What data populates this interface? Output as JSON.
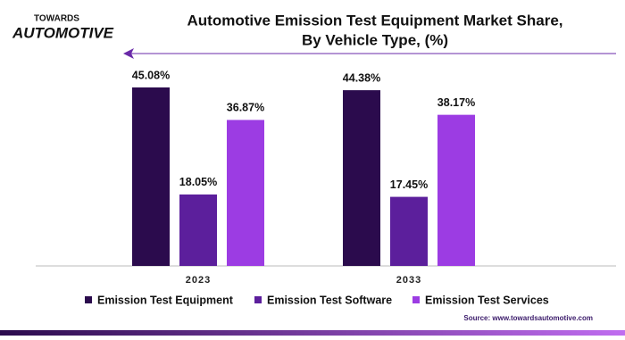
{
  "logo": {
    "top": "TOWARDS",
    "bottom": "AUTOMOTIVE"
  },
  "chart_data": {
    "type": "bar",
    "title": "Automotive Emission Test Equipment Market Share,",
    "subtitle": "By Vehicle Type, (%)",
    "categories": [
      "2023",
      "2033"
    ],
    "series": [
      {
        "name": "Emission Test Equipment",
        "color": "#2b0b4d",
        "values": [
          45.08,
          44.38
        ],
        "value_labels": [
          "45.08%",
          "44.38%"
        ]
      },
      {
        "name": "Emission Test Software",
        "color": "#5c1f9c",
        "values": [
          18.05,
          17.45
        ],
        "value_labels": [
          "18.05%",
          "17.45%"
        ]
      },
      {
        "name": "Emission Test Services",
        "color": "#9c3ce3",
        "values": [
          36.87,
          38.17
        ],
        "value_labels": [
          "36.87%",
          "38.17%"
        ]
      }
    ],
    "source": "Source: www.towardsautomotive.com"
  }
}
